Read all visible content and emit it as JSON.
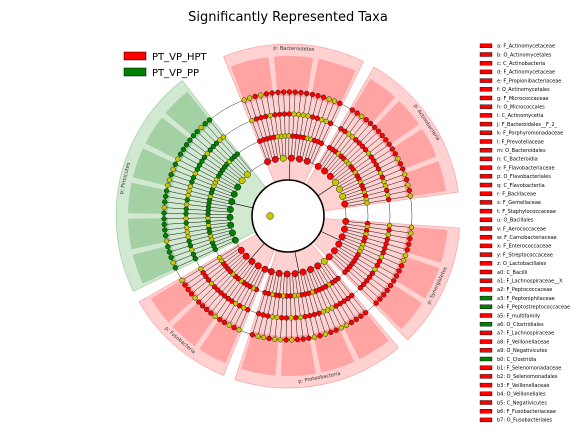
{
  "chart_data": {
    "type": "cladogram",
    "title": "Significantly Represented Taxa",
    "legend": {
      "placement": "top-left",
      "entries": [
        {
          "name": "PT_VP_HPT",
          "color": "#ff0000"
        },
        {
          "name": "PT_VP_PP",
          "color": "#008000"
        }
      ]
    },
    "colors": {
      "hpt": "#ff0000",
      "pp": "#008000",
      "neutral": "#c8c800",
      "line": "#000000"
    },
    "clades": [
      {
        "label": "p: Bacteroidetes",
        "group": "hpt",
        "angle_start": -112,
        "angle_end": -64
      },
      {
        "label": "p: Actinobacteria",
        "group": "hpt",
        "angle_start": -60,
        "angle_end": -8
      },
      {
        "label": "p: Synergistetes",
        "group": "hpt",
        "angle_start": 4,
        "angle_end": 46
      },
      {
        "label": "p: Proteobacteria",
        "group": "hpt",
        "angle_start": 50,
        "angle_end": 108
      },
      {
        "label": "p: Fusobacteria",
        "group": "hpt",
        "angle_start": 112,
        "angle_end": 150
      },
      {
        "label": "p: Firmicutes",
        "group": "pp",
        "angle_start": 154,
        "angle_end": 232
      }
    ],
    "key": [
      {
        "letter": "a",
        "label": "a: F_Actinomycetaceae",
        "group": "hpt"
      },
      {
        "letter": "b",
        "label": "b: O_Actinomycetales",
        "group": "hpt"
      },
      {
        "letter": "c",
        "label": "c: C_Actinobacteria",
        "group": "hpt"
      },
      {
        "letter": "d",
        "label": "d: F_Actinomycetaceae",
        "group": "hpt"
      },
      {
        "letter": "e",
        "label": "e: F_Propionibacteriaceae",
        "group": "hpt"
      },
      {
        "letter": "f",
        "label": "f: O_Actinomycetales",
        "group": "hpt"
      },
      {
        "letter": "g",
        "label": "g: F_Micrococcaceae",
        "group": "hpt"
      },
      {
        "letter": "h",
        "label": "h: O_Micrococcales",
        "group": "hpt"
      },
      {
        "letter": "i",
        "label": "i: C_Actinomycetia",
        "group": "hpt"
      },
      {
        "letter": "j",
        "label": "j: F_Bacteroidales__F_2_",
        "group": "hpt"
      },
      {
        "letter": "k",
        "label": "k: F_Porphyromonadaceae",
        "group": "hpt"
      },
      {
        "letter": "l",
        "label": "l: F_Prevotellaceae",
        "group": "hpt"
      },
      {
        "letter": "m",
        "label": "m: O_Bacteroidales",
        "group": "hpt"
      },
      {
        "letter": "n",
        "label": "n: C_Bacteroidia",
        "group": "hpt"
      },
      {
        "letter": "o",
        "label": "o: F_Flavobacteriaceae",
        "group": "hpt"
      },
      {
        "letter": "p",
        "label": "p: O_Flavobacteriales",
        "group": "hpt"
      },
      {
        "letter": "q",
        "label": "q: C_Flavobacteriia",
        "group": "hpt"
      },
      {
        "letter": "r",
        "label": "r: F_Bacillaceae",
        "group": "hpt"
      },
      {
        "letter": "s",
        "label": "s: F_Gemellaceae",
        "group": "hpt"
      },
      {
        "letter": "t",
        "label": "t: F_Staphylococcaceae",
        "group": "hpt"
      },
      {
        "letter": "u",
        "label": "u: O_Bacillales",
        "group": "hpt"
      },
      {
        "letter": "v",
        "label": "v: F_Aerococcaceae",
        "group": "hpt"
      },
      {
        "letter": "w",
        "label": "w: F_Carnobacteriaceae",
        "group": "hpt"
      },
      {
        "letter": "x",
        "label": "x: F_Enterococcaceae",
        "group": "hpt"
      },
      {
        "letter": "y",
        "label": "y: F_Streptococcaceae",
        "group": "hpt"
      },
      {
        "letter": "z",
        "label": "z: O_Lactobacillales",
        "group": "hpt"
      },
      {
        "letter": "a0",
        "label": "a0: C_Bacilli",
        "group": "hpt"
      },
      {
        "letter": "a1",
        "label": "a1: F_Lachnospiraceae__X",
        "group": "hpt"
      },
      {
        "letter": "a2",
        "label": "a2: F_Peptococcaceae",
        "group": "hpt"
      },
      {
        "letter": "a3",
        "label": "a3: F_Peptoniphilaceae",
        "group": "pp"
      },
      {
        "letter": "a4",
        "label": "a4: F_Peptostreptococcaceae",
        "group": "pp"
      },
      {
        "letter": "a5",
        "label": "a5: F_multifamily",
        "group": "hpt"
      },
      {
        "letter": "a6",
        "label": "a6: O_Clostridiales",
        "group": "pp"
      },
      {
        "letter": "a7",
        "label": "a7: F_Lachnospiraceae",
        "group": "hpt"
      },
      {
        "letter": "a8",
        "label": "a8: F_Veillonellaceae",
        "group": "hpt"
      },
      {
        "letter": "a9",
        "label": "a9: O_Negativicutes",
        "group": "hpt"
      },
      {
        "letter": "b0",
        "label": "b0: C_Clostridia",
        "group": "pp"
      },
      {
        "letter": "b1",
        "label": "b1: F_Selenomonadaceae",
        "group": "hpt"
      },
      {
        "letter": "b2",
        "label": "b2: O_Selenomonadales",
        "group": "hpt"
      },
      {
        "letter": "b3",
        "label": "b3: F_Veillonellaceae",
        "group": "hpt"
      },
      {
        "letter": "b4",
        "label": "b4: O_Veillonellales",
        "group": "hpt"
      },
      {
        "letter": "b5",
        "label": "b5: C_Negativicutes",
        "group": "hpt"
      },
      {
        "letter": "b6",
        "label": "b6: F_Fusobacteriaceae",
        "group": "hpt"
      },
      {
        "letter": "b7",
        "label": "b7: O_Fusobacteriales",
        "group": "hpt"
      }
    ]
  }
}
